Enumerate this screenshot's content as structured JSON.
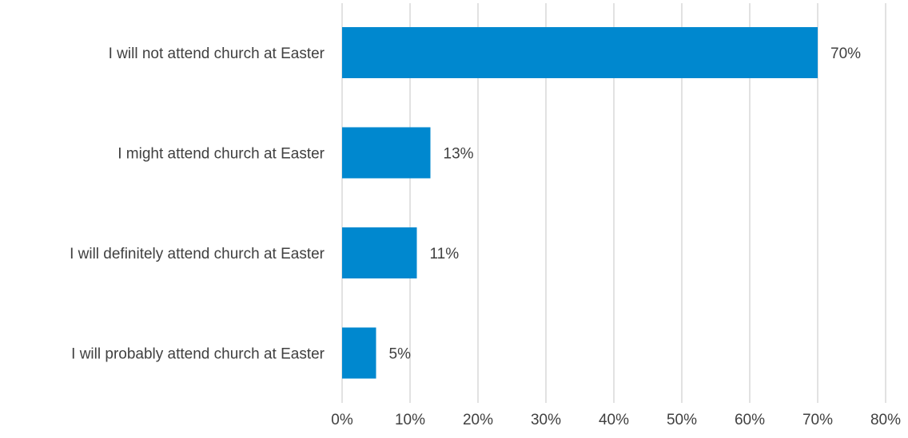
{
  "chart_data": {
    "type": "bar",
    "orientation": "horizontal",
    "title": "",
    "xlabel": "",
    "ylabel": "",
    "categories": [
      "I will not attend church at Easter",
      "I might attend church at Easter",
      "I will definitely attend church at Easter",
      "I will probably attend church at Easter"
    ],
    "values": [
      70,
      13,
      11,
      5
    ],
    "data_labels": [
      "70%",
      "13%",
      "11%",
      "5%"
    ],
    "xlim": [
      0,
      80
    ],
    "x_ticks": [
      0,
      10,
      20,
      30,
      40,
      50,
      60,
      70,
      80
    ],
    "x_tick_labels": [
      "0%",
      "10%",
      "20%",
      "30%",
      "40%",
      "50%",
      "60%",
      "70%",
      "80%"
    ],
    "grid": "vertical",
    "legend": "none",
    "bar_color": "#0088cf"
  }
}
